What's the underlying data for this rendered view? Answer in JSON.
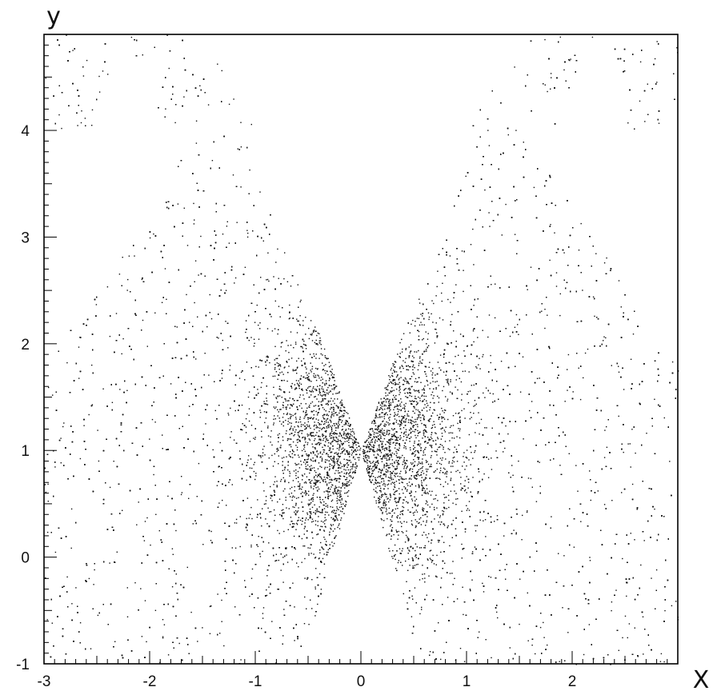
{
  "chart_data": {
    "type": "scatter",
    "title": "",
    "xlabel": "X",
    "ylabel": "y",
    "xlim": [
      -3,
      3
    ],
    "ylim": [
      -1,
      4.9
    ],
    "grid": false,
    "legend": "none",
    "xticks": [
      {
        "value": -3,
        "label": "-3"
      },
      {
        "value": -2,
        "label": "-2"
      },
      {
        "value": -1,
        "label": "-1"
      },
      {
        "value": 0,
        "label": "0"
      },
      {
        "value": 1,
        "label": "1"
      },
      {
        "value": 2,
        "label": "2"
      }
    ],
    "yticks": [
      {
        "value": -1,
        "label": "-1"
      },
      {
        "value": 0,
        "label": "0"
      },
      {
        "value": 1,
        "label": "1"
      },
      {
        "value": 2,
        "label": "2"
      },
      {
        "value": 3,
        "label": "3"
      },
      {
        "value": 4,
        "label": "4"
      }
    ],
    "minor_tick_step": 0.1,
    "point_color": "#111111",
    "point_count_shown": "~25000 (dense point cloud)",
    "regions": [
      {
        "name": "lower-cone",
        "description": "points fill |x| >= 0.3*(1 - y) for y <= 1; empty notch below x=0 down to y=-1"
      },
      {
        "name": "upper-cone",
        "description": "points fill |x| >= 0.35*(y - 1) near center, bounded outside by |x| <= 3.4 - 0.6*y, forming an X-shape"
      },
      {
        "name": "upper-corners",
        "description": "points fill |x| >= 0.8*(y-2) region in upper-left and upper-right corners from y=4 to 4.9"
      },
      {
        "name": "center-core",
        "description": "highest density around (0, 1)"
      }
    ]
  }
}
